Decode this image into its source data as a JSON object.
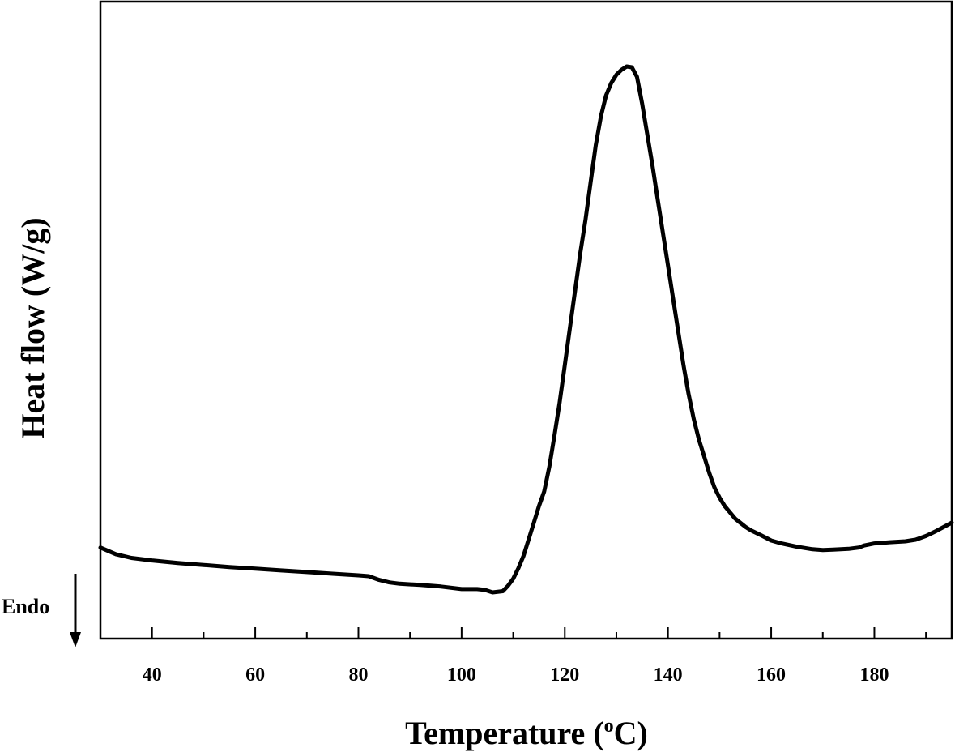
{
  "chart_data": {
    "type": "line",
    "title": "",
    "xlabel": "Temperature (°C)",
    "xlabel_parts": {
      "main": "Temperature (",
      "sup": "o",
      "unit": "C)"
    },
    "ylabel": "Heat flow (W/g)",
    "xlim": [
      30,
      195
    ],
    "xticks": [
      40,
      60,
      80,
      100,
      120,
      140,
      160,
      180
    ],
    "x_minor_step": 10,
    "yticks": [],
    "y_scale": "arbitrary",
    "grid": false,
    "legend": "none",
    "annotation": {
      "text": "Endo",
      "arrow": "down"
    },
    "line_color": "#000000",
    "series": [
      {
        "x": [
          30,
          33,
          36,
          40,
          45,
          50,
          55,
          60,
          65,
          70,
          75,
          80,
          82,
          84,
          86,
          88,
          92,
          96,
          100,
          103,
          104.5,
          106,
          108,
          109,
          110,
          111,
          112,
          113,
          114,
          115,
          116,
          117,
          118,
          119,
          120,
          121,
          122,
          123,
          124,
          125,
          126,
          127,
          128,
          129,
          130,
          131,
          132,
          133,
          134,
          135,
          136,
          137,
          138,
          139,
          140,
          141,
          142,
          143,
          144,
          145,
          146,
          147,
          148,
          149,
          150,
          151,
          152,
          153,
          154,
          155,
          156,
          158,
          160,
          162,
          165,
          168,
          170,
          172,
          175,
          177,
          178,
          180,
          183,
          186,
          188,
          190,
          192,
          195
        ],
        "y": [
          0.08,
          0.064,
          0.055,
          0.049,
          0.043,
          0.038,
          0.033,
          0.029,
          0.025,
          0.021,
          0.017,
          0.013,
          0.011,
          0.002,
          -0.004,
          -0.007,
          -0.01,
          -0.014,
          -0.02,
          -0.02,
          -0.022,
          -0.028,
          -0.025,
          -0.012,
          0.005,
          0.03,
          0.06,
          0.1,
          0.14,
          0.18,
          0.215,
          0.275,
          0.35,
          0.43,
          0.52,
          0.61,
          0.7,
          0.79,
          0.87,
          0.96,
          1.05,
          1.12,
          1.17,
          1.2,
          1.22,
          1.232,
          1.24,
          1.238,
          1.215,
          1.15,
          1.075,
          1.0,
          0.92,
          0.84,
          0.76,
          0.68,
          0.6,
          0.52,
          0.45,
          0.39,
          0.34,
          0.3,
          0.26,
          0.225,
          0.2,
          0.18,
          0.165,
          0.15,
          0.14,
          0.13,
          0.122,
          0.11,
          0.097,
          0.09,
          0.082,
          0.076,
          0.074,
          0.075,
          0.077,
          0.08,
          0.085,
          0.09,
          0.093,
          0.095,
          0.099,
          0.108,
          0.12,
          0.14
        ]
      }
    ]
  }
}
